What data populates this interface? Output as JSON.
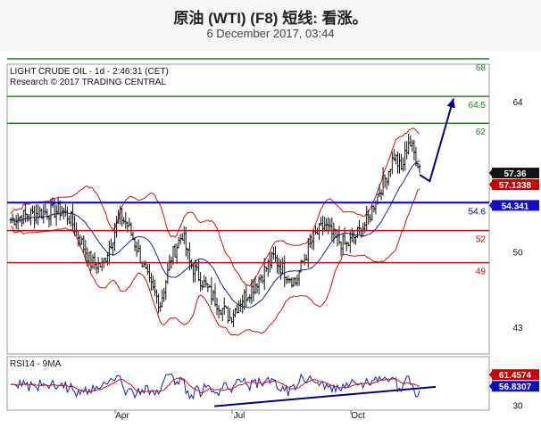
{
  "header": {
    "title": "原油 (WTI) (F8) 短线: 看涨。",
    "date": "6 December 2017, 03:44"
  },
  "chart_meta": {
    "caption_line1": "LIGHT CRUDE OIL - 1d - 2:46:31 (CET)",
    "caption_line2": "Research © 2017 TRADING CENTRAL",
    "rsi_caption": "RSI14 - 9MA"
  },
  "colors": {
    "resistance": "#1a8a1a",
    "pivot": "#0000cc",
    "support": "#dd0000",
    "forecast": "#000080",
    "price_tag": "#111111",
    "ma_tag": "#cc0000",
    "pivot_tag": "#1010c0"
  },
  "chart_data": [
    {
      "type": "line",
      "subtype": "candlestick-with-bollinger-bands",
      "x_ticks": [
        "Apr",
        "Jul",
        "Oct"
      ],
      "ylim": [
        40.5,
        67.5
      ],
      "y_ticks": [
        43,
        50,
        57,
        64
      ],
      "levels": [
        {
          "value": 68,
          "label": "68",
          "kind": "resistance"
        },
        {
          "value": 64.5,
          "label": "64.5",
          "kind": "resistance"
        },
        {
          "value": 62,
          "label": "62",
          "kind": "resistance"
        },
        {
          "value": 54.6,
          "label": "54.6",
          "kind": "pivot"
        },
        {
          "value": 52,
          "label": "52",
          "kind": "support"
        },
        {
          "value": 49,
          "label": "49",
          "kind": "support"
        }
      ],
      "price_tags": [
        {
          "value": 57.36,
          "label": "57.36",
          "kind": "price"
        },
        {
          "value": 57.1338,
          "label": "57.1338",
          "kind": "ma"
        },
        {
          "value": 54.341,
          "label": "54.341",
          "kind": "pivot"
        }
      ],
      "forecast_path": [
        [
          0.0,
          57.2
        ],
        [
          0.3,
          56.6
        ],
        [
          1.0,
          64.3
        ]
      ]
    },
    {
      "type": "line",
      "subtype": "rsi",
      "ylim": [
        25,
        80
      ],
      "y_ticks": [
        30
      ],
      "price_tags": [
        {
          "value": 61.4574,
          "label": "61.4574",
          "kind": "ma"
        },
        {
          "value": 56.8307,
          "label": "56.8307",
          "kind": "pivot"
        }
      ]
    }
  ]
}
